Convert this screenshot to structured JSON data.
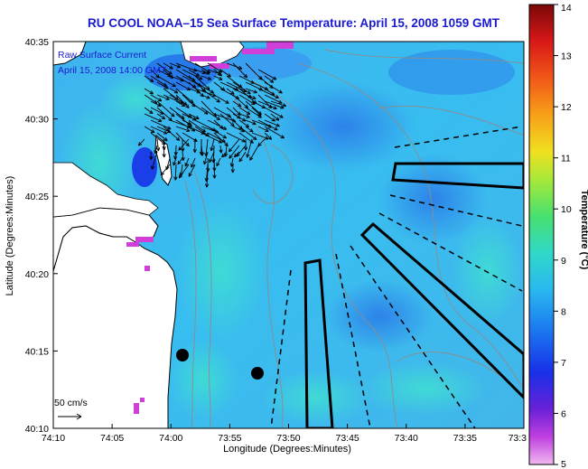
{
  "title": "RU COOL  NOAA–15  Sea Surface Temperature:  April 15, 2008 1059 GMT",
  "map": {
    "ylabel": "Latitude (Degrees:Minutes)",
    "xlabel": "Longitude (Degrees:Minutes)",
    "lat_ticks": [
      "40:35",
      "40:30",
      "40:25",
      "40:20",
      "40:15",
      "40:10"
    ],
    "lon_ticks": [
      "74:10",
      "74:05",
      "74:00",
      "73:55",
      "73:50",
      "73:45",
      "73:40",
      "73:35",
      "73:3"
    ],
    "overlay_label": "Raw Surface Current",
    "overlay_time": "April 15, 2008 14:00 GMT",
    "scale_label": "50 cm/s",
    "colors": {
      "land": "#ffffff",
      "water_base": "#3ab9ef",
      "arrows": "#000000",
      "contours": "#8c8c8c",
      "title": "#1a1ad0"
    }
  },
  "colorbar": {
    "label": "Temperature (°C)",
    "ticks": [
      "14",
      "13",
      "12",
      "11",
      "10",
      "9",
      "8",
      "7",
      "6",
      "5"
    ],
    "min": 5,
    "max": 14
  }
}
